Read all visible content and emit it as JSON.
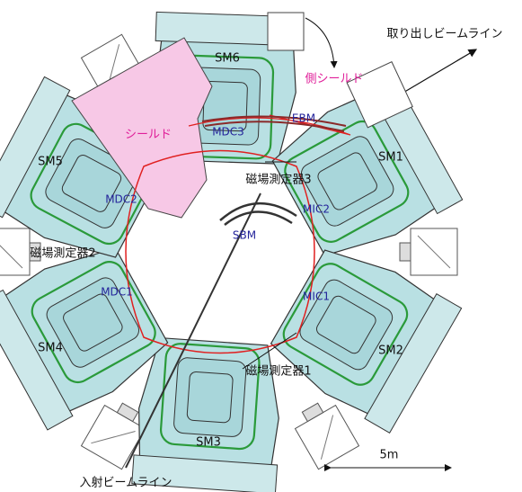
{
  "labels": {
    "extraction_beamline": "取り出しビームライン",
    "injection_beamline": "入射ビームライン",
    "side_shield": "側シールド",
    "shield": "シールド",
    "sm1": "SM1",
    "sm2": "SM2",
    "sm3": "SM3",
    "sm4": "SM4",
    "sm5": "SM5",
    "sm6": "SM6",
    "ebm": "EBM",
    "sbm": "SBM",
    "mdc1": "MDC1",
    "mdc2": "MDC2",
    "mdc3": "MDC3",
    "mic1": "MIC1",
    "mic2": "MIC2",
    "probe1": "磁場測定器1",
    "probe2": "磁場測定器2",
    "probe3": "磁場測定器3",
    "scale": "5m"
  }
}
